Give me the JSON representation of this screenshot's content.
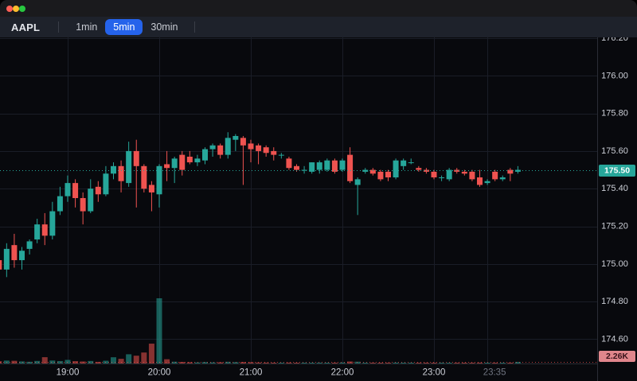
{
  "window": {
    "traffic_lights": [
      {
        "name": "close-button",
        "color": "#ff5f57"
      },
      {
        "name": "minimize-button",
        "color": "#febc2e"
      },
      {
        "name": "zoom-button",
        "color": "#28c840"
      }
    ]
  },
  "toolbar": {
    "symbol": "AAPL",
    "timeframes": [
      "1min",
      "5min",
      "30min"
    ],
    "active_timeframe": "5min"
  },
  "chart_data": {
    "type": "candlestick",
    "symbol": "AAPL",
    "interval": "5min",
    "title": "",
    "legend_position": "none",
    "grid": true,
    "price_ticks": [
      "176.20",
      "176.00",
      "175.80",
      "175.60",
      "175.40",
      "175.20",
      "175.00",
      "174.80",
      "174.60"
    ],
    "y_range": [
      174.47,
      176.22
    ],
    "time_ticks": [
      {
        "label": "19:00",
        "time": "19:00",
        "dim": false,
        "label_dx": 0
      },
      {
        "label": "20:00",
        "time": "20:00",
        "dim": false,
        "label_dx": 0
      },
      {
        "label": "21:00",
        "time": "21:00",
        "dim": false,
        "label_dx": 0
      },
      {
        "label": "22:00",
        "time": "22:00",
        "dim": false,
        "label_dx": 0
      },
      {
        "label": "23:00",
        "time": "23:00",
        "dim": false,
        "label_dx": 0
      },
      {
        "label": "23:35",
        "time": "23:35",
        "dim": true,
        "label_dx": 9
      }
    ],
    "price_line_value": 175.5,
    "last_price_label": "175.50",
    "last_volume_label": "2.26K",
    "candles": [
      [
        "18:15",
        175.02,
        175.04,
        174.95,
        174.97,
        3200
      ],
      [
        "18:20",
        174.97,
        175.11,
        174.93,
        175.08,
        4100
      ],
      [
        "18:25",
        175.1,
        175.16,
        174.98,
        175.02,
        3800
      ],
      [
        "18:30",
        175.02,
        175.09,
        174.97,
        175.07,
        2900
      ],
      [
        "18:35",
        175.08,
        175.13,
        175.05,
        175.12,
        2400
      ],
      [
        "18:40",
        175.13,
        175.24,
        175.11,
        175.21,
        3600
      ],
      [
        "18:45",
        175.21,
        175.27,
        175.1,
        175.15,
        8900
      ],
      [
        "18:50",
        175.15,
        175.33,
        175.13,
        175.28,
        4200
      ],
      [
        "18:55",
        175.28,
        175.41,
        175.26,
        175.36,
        3400
      ],
      [
        "19:00",
        175.36,
        175.47,
        175.33,
        175.43,
        5100
      ],
      [
        "19:05",
        175.43,
        175.45,
        175.3,
        175.35,
        3300
      ],
      [
        "19:10",
        175.35,
        175.38,
        175.21,
        175.28,
        2800
      ],
      [
        "19:15",
        175.28,
        175.45,
        175.27,
        175.4,
        3500
      ],
      [
        "19:20",
        175.41,
        175.44,
        175.33,
        175.37,
        2300
      ],
      [
        "19:25",
        175.37,
        175.52,
        175.36,
        175.48,
        3900
      ],
      [
        "19:30",
        175.48,
        175.54,
        175.45,
        175.52,
        8800
      ],
      [
        "19:35",
        175.52,
        175.55,
        175.38,
        175.44,
        6600
      ],
      [
        "19:40",
        175.43,
        175.65,
        175.41,
        175.6,
        13000
      ],
      [
        "19:45",
        175.6,
        175.66,
        175.3,
        175.52,
        11000
      ],
      [
        "19:50",
        175.52,
        175.53,
        175.38,
        175.4,
        15500
      ],
      [
        "19:55",
        175.42,
        175.44,
        175.28,
        175.38,
        28000
      ],
      [
        "20:00",
        175.37,
        175.53,
        175.3,
        175.52,
        92000
      ],
      [
        "20:05",
        175.53,
        175.6,
        175.44,
        175.51,
        6000
      ],
      [
        "20:10",
        175.51,
        175.57,
        175.43,
        175.56,
        2500
      ],
      [
        "20:15",
        175.58,
        175.6,
        175.47,
        175.5,
        2200
      ],
      [
        "20:20",
        175.57,
        175.6,
        175.53,
        175.54,
        1800
      ],
      [
        "20:25",
        175.54,
        175.58,
        175.52,
        175.56,
        1500
      ],
      [
        "20:30",
        175.55,
        175.62,
        175.53,
        175.61,
        2000
      ],
      [
        "20:35",
        175.61,
        175.64,
        175.57,
        175.63,
        1600
      ],
      [
        "20:40",
        175.63,
        175.64,
        175.56,
        175.58,
        1700
      ],
      [
        "20:45",
        175.58,
        175.7,
        175.56,
        175.67,
        2400
      ],
      [
        "20:50",
        175.66,
        175.69,
        175.6,
        175.68,
        1900
      ],
      [
        "20:55",
        175.67,
        175.68,
        175.42,
        175.63,
        2100
      ],
      [
        "21:00",
        175.64,
        175.66,
        175.54,
        175.61,
        1800
      ],
      [
        "21:05",
        175.63,
        175.64,
        175.53,
        175.6,
        1400
      ],
      [
        "21:10",
        175.62,
        175.63,
        175.57,
        175.59,
        1200
      ],
      [
        "21:15",
        175.6,
        175.62,
        175.55,
        175.58,
        1100
      ],
      [
        "21:20",
        175.58,
        175.59,
        175.56,
        175.58,
        900
      ],
      [
        "21:25",
        175.56,
        175.57,
        175.5,
        175.51,
        1300
      ],
      [
        "21:30",
        175.52,
        175.53,
        175.49,
        175.5,
        1000
      ],
      [
        "21:35",
        175.5,
        175.52,
        175.48,
        175.5,
        800
      ],
      [
        "21:40",
        175.49,
        175.54,
        175.48,
        175.54,
        1100
      ],
      [
        "21:45",
        175.5,
        175.55,
        175.48,
        175.54,
        1200
      ],
      [
        "21:50",
        175.5,
        175.56,
        175.49,
        175.55,
        1000
      ],
      [
        "21:55",
        175.55,
        175.56,
        175.48,
        175.49,
        1100
      ],
      [
        "22:00",
        175.5,
        175.56,
        175.49,
        175.55,
        1400
      ],
      [
        "22:05",
        175.58,
        175.62,
        175.43,
        175.44,
        2800
      ],
      [
        "22:10",
        175.42,
        175.46,
        175.26,
        175.45,
        2500
      ],
      [
        "22:15",
        175.49,
        175.51,
        175.48,
        175.5,
        1000
      ],
      [
        "22:20",
        175.5,
        175.51,
        175.47,
        175.48,
        900
      ],
      [
        "22:25",
        175.49,
        175.5,
        175.44,
        175.45,
        1000
      ],
      [
        "22:30",
        175.49,
        175.5,
        175.44,
        175.46,
        800
      ],
      [
        "22:35",
        175.46,
        175.56,
        175.45,
        175.55,
        1300
      ],
      [
        "22:40",
        175.52,
        175.56,
        175.5,
        175.55,
        900
      ],
      [
        "22:45",
        175.54,
        175.56,
        175.53,
        175.54,
        700
      ],
      [
        "22:50",
        175.51,
        175.52,
        175.49,
        175.5,
        600
      ],
      [
        "22:55",
        175.5,
        175.51,
        175.48,
        175.49,
        700
      ],
      [
        "23:00",
        175.49,
        175.5,
        175.45,
        175.46,
        1100
      ],
      [
        "23:05",
        175.46,
        175.47,
        175.44,
        175.46,
        600
      ],
      [
        "23:10",
        175.45,
        175.51,
        175.44,
        175.5,
        900
      ],
      [
        "23:15",
        175.5,
        175.51,
        175.48,
        175.49,
        500
      ],
      [
        "23:20",
        175.49,
        175.5,
        175.47,
        175.48,
        500
      ],
      [
        "23:25",
        175.49,
        175.5,
        175.44,
        175.45,
        800
      ],
      [
        "23:30",
        175.46,
        175.5,
        175.41,
        175.42,
        1200
      ],
      [
        "23:35",
        175.43,
        175.45,
        175.42,
        175.44,
        600
      ],
      [
        "23:40",
        175.49,
        175.5,
        175.44,
        175.45,
        1000
      ],
      [
        "23:45",
        175.45,
        175.47,
        175.44,
        175.46,
        700
      ],
      [
        "23:50",
        175.5,
        175.51,
        175.44,
        175.48,
        900
      ],
      [
        "23:55",
        175.49,
        175.52,
        175.48,
        175.5,
        2260
      ]
    ]
  },
  "colors": {
    "up": "#26a69a",
    "down": "#ef5350",
    "volume_up": "rgba(38,166,154,0.55)",
    "volume_down": "rgba(239,83,80,0.55)",
    "accent_blue": "#2563eb",
    "price_label_bg": "#26a69a",
    "price_label_text": "#ffffff",
    "volume_label_bg": "#e0868c",
    "volume_label_text": "#38121a",
    "grid": "#1a1d27",
    "axis_border": "#2a2d35",
    "axis_text": "#cdd0d8",
    "axis_text_dim": "#6f7480",
    "chart_bg": "#08090d"
  }
}
